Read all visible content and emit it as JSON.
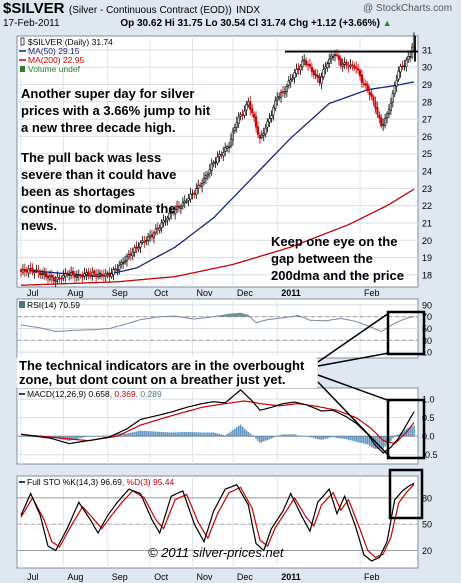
{
  "header": {
    "symbol": "$SILVER",
    "description": "(Silver - Continuous Contract (EOD))",
    "exchange": "INDX",
    "watermark": "@ StockCharts.com",
    "date": "17-Feb-2011",
    "quote": "Op 30.62  Hi 31.75  Lo 30.54  Cl 31.74  Chg +1.12 (+3.66%)",
    "quote_arrow": "▲"
  },
  "colors": {
    "price_up": "#000000",
    "price_down": "#cc0000",
    "ma50": "#1a237e",
    "ma200": "#cc0000",
    "volume_label": "#2e7d32",
    "rsi": "#7a8a9a",
    "rsi_fill": "#4f7a7a",
    "macd_line": "#000000",
    "signal_line": "#cc0000",
    "histogram": "#4682b4",
    "sto_k": "#000000",
    "sto_d": "#cc0000",
    "annotation_box": "#000000",
    "panel_bg": "#ffffff",
    "frame_bg": "#dfe7f0"
  },
  "annotations": {
    "para1": [
      "Another super day for silver",
      "prices with a 3.66% jump to hit",
      "a new three decade high."
    ],
    "para2": [
      "The pull back was less",
      "severe than it could have",
      "been as shortages",
      "continue to dominate the",
      "news."
    ],
    "para3": [
      "Keep one eye on the",
      "gap between the",
      "200dma and the price"
    ],
    "indicators_note": [
      "The technical indicators are in the overbought",
      "zone, but dont count on a breather just yet."
    ],
    "copyright": "© 2011 silver-prices.net"
  },
  "chart_data": [
    {
      "type": "candlestick",
      "panel": "price",
      "title": "$SILVER (Daily) 31.74",
      "legend": [
        {
          "name": "$SILVER (Daily) 31.74",
          "icon": "candle"
        },
        {
          "name": "MA(50) 29.15",
          "color": "#1a237e"
        },
        {
          "name": "MA(200) 22.95",
          "color": "#cc0000"
        },
        {
          "name": "Volume undef",
          "color": "#2e7d32"
        }
      ],
      "x_labels": [
        "Jul",
        "Aug",
        "Sep",
        "Oct",
        "Nov",
        "Dec",
        "2011",
        "Feb"
      ],
      "y_ticks": [
        18,
        19,
        20,
        21,
        22,
        23,
        24,
        25,
        26,
        27,
        28,
        29,
        30,
        31
      ],
      "ylim": [
        17.3,
        31.8
      ],
      "close_knots": [
        [
          0,
          18.2
        ],
        [
          5,
          18.3
        ],
        [
          10,
          18.1
        ],
        [
          18,
          17.7
        ],
        [
          25,
          18.1
        ],
        [
          30,
          17.9
        ],
        [
          35,
          18.1
        ],
        [
          40,
          18.0
        ],
        [
          46,
          18.0
        ],
        [
          50,
          18.4
        ],
        [
          55,
          19.0
        ],
        [
          62,
          19.8
        ],
        [
          68,
          20.3
        ],
        [
          72,
          20.8
        ],
        [
          78,
          21.6
        ],
        [
          84,
          22.1
        ],
        [
          90,
          22.8
        ],
        [
          95,
          23.5
        ],
        [
          100,
          24.5
        ],
        [
          104,
          25.0
        ],
        [
          108,
          25.5
        ],
        [
          112,
          26.9
        ],
        [
          116,
          27.5
        ],
        [
          118,
          28.0
        ],
        [
          121,
          27.0
        ],
        [
          124,
          25.8
        ],
        [
          127,
          26.5
        ],
        [
          130,
          27.3
        ],
        [
          133,
          28.3
        ],
        [
          136,
          28.5
        ],
        [
          140,
          29.3
        ],
        [
          143,
          29.8
        ],
        [
          147,
          30.4
        ],
        [
          151,
          29.8
        ],
        [
          155,
          29.2
        ],
        [
          159,
          30.3
        ],
        [
          163,
          30.8
        ],
        [
          166,
          30.2
        ],
        [
          170,
          30.1
        ],
        [
          174,
          30.0
        ],
        [
          177,
          29.2
        ],
        [
          181,
          28.5
        ],
        [
          184,
          27.7
        ],
        [
          187,
          26.6
        ],
        [
          190,
          27.2
        ],
        [
          193,
          28.4
        ],
        [
          196,
          29.8
        ],
        [
          199,
          30.2
        ],
        [
          202,
          30.7
        ],
        [
          204,
          31.74
        ]
      ],
      "ma50_knots": [
        [
          0,
          18.3
        ],
        [
          40,
          17.9
        ],
        [
          60,
          18.4
        ],
        [
          80,
          19.6
        ],
        [
          100,
          21.3
        ],
        [
          120,
          23.6
        ],
        [
          140,
          25.9
        ],
        [
          160,
          27.9
        ],
        [
          180,
          28.7
        ],
        [
          195,
          28.95
        ],
        [
          204,
          29.15
        ]
      ],
      "ma200_knots": [
        [
          0,
          17.4
        ],
        [
          50,
          17.6
        ],
        [
          80,
          17.9
        ],
        [
          110,
          18.6
        ],
        [
          140,
          19.6
        ],
        [
          170,
          20.9
        ],
        [
          190,
          22.0
        ],
        [
          204,
          22.95
        ]
      ],
      "resistance_line": {
        "value": 30.9,
        "x_from": 137,
        "x_to": 204
      }
    },
    {
      "type": "line",
      "panel": "rsi",
      "legend": [
        {
          "name": "RSI(14) 70.59"
        }
      ],
      "y_ticks": [
        10,
        30,
        50,
        70,
        90
      ],
      "ylim": [
        0,
        100
      ],
      "knots": [
        [
          0,
          56
        ],
        [
          10,
          51
        ],
        [
          18,
          45
        ],
        [
          28,
          47
        ],
        [
          38,
          48
        ],
        [
          46,
          50
        ],
        [
          55,
          58
        ],
        [
          62,
          65
        ],
        [
          72,
          70
        ],
        [
          80,
          71
        ],
        [
          90,
          66
        ],
        [
          100,
          70
        ],
        [
          108,
          74
        ],
        [
          114,
          76
        ],
        [
          118,
          72
        ],
        [
          122,
          60
        ],
        [
          128,
          65
        ],
        [
          136,
          68
        ],
        [
          144,
          72
        ],
        [
          150,
          64
        ],
        [
          158,
          63
        ],
        [
          166,
          67
        ],
        [
          174,
          62
        ],
        [
          182,
          52
        ],
        [
          187,
          45
        ],
        [
          192,
          55
        ],
        [
          196,
          62
        ],
        [
          200,
          67
        ],
        [
          204,
          70.59
        ]
      ]
    },
    {
      "type": "line",
      "panel": "macd",
      "legend": [
        {
          "name": "MACD(12,26,9) 0.658",
          "color": "#000000"
        },
        {
          "name": "0.369",
          "color": "#cc0000"
        },
        {
          "name": "0.289",
          "color": "#4f7a7a"
        }
      ],
      "y_ticks": [
        -0.5,
        0.0,
        0.5,
        1.0
      ],
      "ylim": [
        -0.75,
        1.3
      ],
      "macd_knots": [
        [
          0,
          0.05
        ],
        [
          15,
          -0.05
        ],
        [
          25,
          -0.2
        ],
        [
          35,
          -0.12
        ],
        [
          46,
          -0.02
        ],
        [
          55,
          0.2
        ],
        [
          62,
          0.45
        ],
        [
          70,
          0.55
        ],
        [
          78,
          0.65
        ],
        [
          86,
          0.78
        ],
        [
          94,
          0.88
        ],
        [
          100,
          0.93
        ],
        [
          106,
          0.9
        ],
        [
          114,
          1.25
        ],
        [
          120,
          0.95
        ],
        [
          124,
          0.7
        ],
        [
          130,
          0.78
        ],
        [
          136,
          0.88
        ],
        [
          142,
          0.92
        ],
        [
          148,
          0.85
        ],
        [
          156,
          0.68
        ],
        [
          162,
          0.7
        ],
        [
          168,
          0.55
        ],
        [
          174,
          0.35
        ],
        [
          180,
          0.05
        ],
        [
          184,
          -0.25
        ],
        [
          188,
          -0.45
        ],
        [
          192,
          -0.3
        ],
        [
          196,
          -0.05
        ],
        [
          200,
          0.3
        ],
        [
          204,
          0.658
        ]
      ],
      "signal_knots": [
        [
          0,
          0.05
        ],
        [
          20,
          -0.05
        ],
        [
          35,
          -0.12
        ],
        [
          50,
          0.0
        ],
        [
          62,
          0.3
        ],
        [
          78,
          0.55
        ],
        [
          94,
          0.78
        ],
        [
          106,
          0.88
        ],
        [
          116,
          0.95
        ],
        [
          124,
          0.88
        ],
        [
          134,
          0.82
        ],
        [
          144,
          0.88
        ],
        [
          154,
          0.8
        ],
        [
          164,
          0.7
        ],
        [
          174,
          0.5
        ],
        [
          182,
          0.2
        ],
        [
          188,
          -0.12
        ],
        [
          194,
          -0.2
        ],
        [
          200,
          0.1
        ],
        [
          204,
          0.369
        ]
      ]
    },
    {
      "type": "line",
      "panel": "stochastic",
      "legend": [
        {
          "name": "Full STO %K(14,3) 96.69",
          "color": "#000000"
        },
        {
          "name": "%D(3) 95.44",
          "color": "#cc0000"
        }
      ],
      "y_ticks": [
        20,
        50,
        80
      ],
      "ylim": [
        0,
        105
      ],
      "k_knots": [
        [
          0,
          60
        ],
        [
          5,
          85
        ],
        [
          10,
          60
        ],
        [
          14,
          25
        ],
        [
          18,
          20
        ],
        [
          24,
          45
        ],
        [
          30,
          75
        ],
        [
          36,
          55
        ],
        [
          40,
          40
        ],
        [
          45,
          60
        ],
        [
          50,
          75
        ],
        [
          56,
          90
        ],
        [
          62,
          85
        ],
        [
          68,
          55
        ],
        [
          72,
          40
        ],
        [
          78,
          82
        ],
        [
          84,
          88
        ],
        [
          90,
          50
        ],
        [
          95,
          30
        ],
        [
          100,
          65
        ],
        [
          106,
          90
        ],
        [
          112,
          95
        ],
        [
          118,
          72
        ],
        [
          122,
          28
        ],
        [
          126,
          20
        ],
        [
          130,
          45
        ],
        [
          136,
          65
        ],
        [
          140,
          85
        ],
        [
          146,
          58
        ],
        [
          150,
          42
        ],
        [
          154,
          75
        ],
        [
          160,
          90
        ],
        [
          164,
          62
        ],
        [
          168,
          82
        ],
        [
          174,
          45
        ],
        [
          178,
          15
        ],
        [
          182,
          8
        ],
        [
          186,
          12
        ],
        [
          190,
          30
        ],
        [
          194,
          78
        ],
        [
          198,
          88
        ],
        [
          201,
          93
        ],
        [
          204,
          96.69
        ]
      ],
      "d_knots": [
        [
          0,
          58
        ],
        [
          6,
          80
        ],
        [
          12,
          55
        ],
        [
          16,
          30
        ],
        [
          20,
          24
        ],
        [
          26,
          48
        ],
        [
          32,
          70
        ],
        [
          38,
          55
        ],
        [
          42,
          45
        ],
        [
          47,
          60
        ],
        [
          52,
          74
        ],
        [
          58,
          88
        ],
        [
          64,
          80
        ],
        [
          70,
          55
        ],
        [
          74,
          45
        ],
        [
          80,
          78
        ],
        [
          86,
          84
        ],
        [
          92,
          52
        ],
        [
          97,
          34
        ],
        [
          102,
          62
        ],
        [
          108,
          86
        ],
        [
          114,
          92
        ],
        [
          120,
          68
        ],
        [
          124,
          32
        ],
        [
          128,
          25
        ],
        [
          132,
          46
        ],
        [
          138,
          66
        ],
        [
          142,
          80
        ],
        [
          148,
          58
        ],
        [
          152,
          48
        ],
        [
          156,
          72
        ],
        [
          162,
          86
        ],
        [
          166,
          66
        ],
        [
          170,
          78
        ],
        [
          176,
          44
        ],
        [
          180,
          20
        ],
        [
          184,
          12
        ],
        [
          188,
          16
        ],
        [
          192,
          35
        ],
        [
          196,
          74
        ],
        [
          200,
          86
        ],
        [
          204,
          95.44
        ]
      ]
    }
  ]
}
